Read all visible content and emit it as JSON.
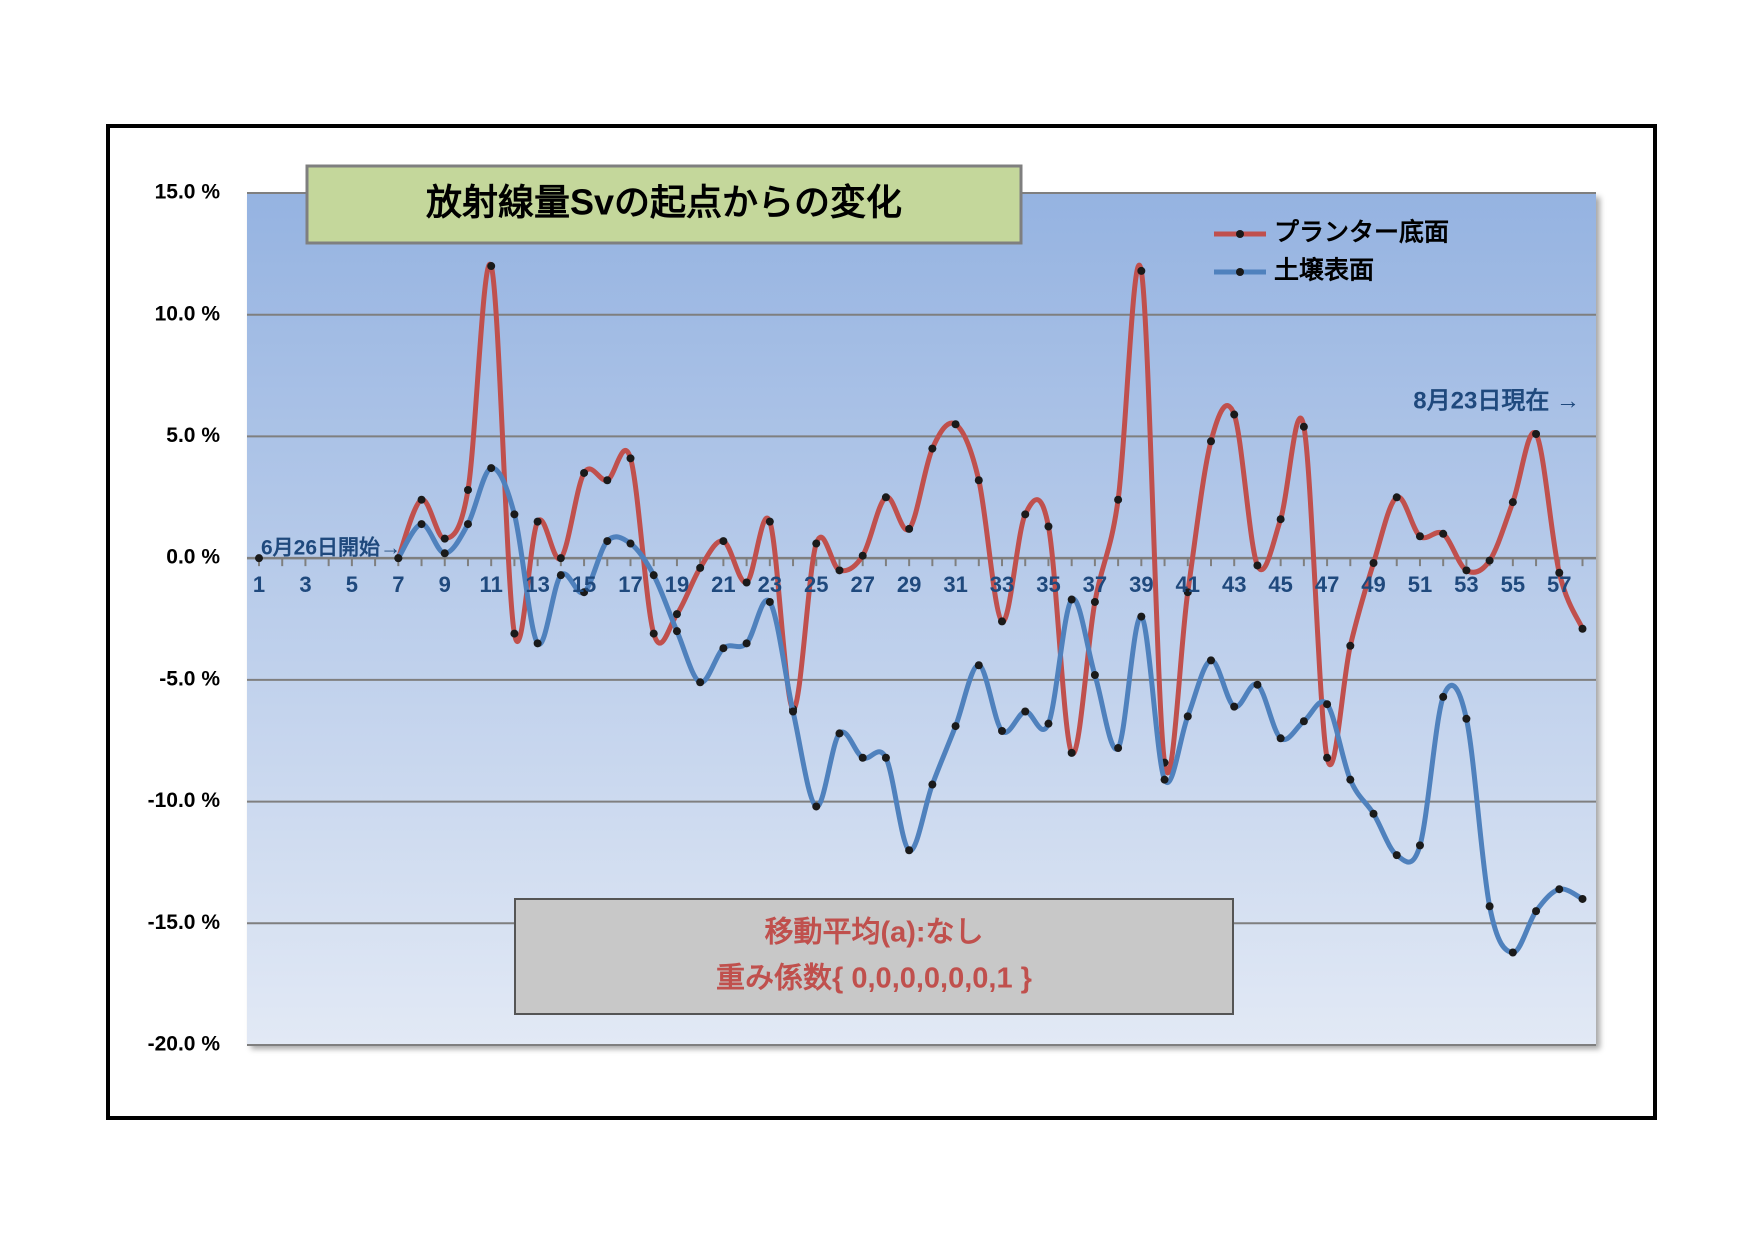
{
  "chart_data": {
    "type": "line",
    "title": "放射線量Svの起点からの変化",
    "categories": [
      1,
      null,
      3,
      null,
      5,
      null,
      7,
      null,
      9,
      null,
      11,
      null,
      13,
      null,
      15,
      null,
      17,
      null,
      19,
      null,
      21,
      null,
      23,
      null,
      25,
      null,
      27,
      null,
      29,
      null,
      31,
      null,
      33,
      null,
      35,
      null,
      37,
      null,
      39,
      null,
      41,
      null,
      43,
      null,
      45,
      null,
      47,
      null,
      49,
      null,
      51,
      null,
      53,
      null,
      55,
      null,
      57,
      null
    ],
    "series": [
      {
        "name": "プランター底面",
        "color": "#c0504d",
        "values": [
          null,
          null,
          null,
          null,
          null,
          null,
          0,
          2.4,
          0.8,
          2.8,
          12.0,
          -3.1,
          1.5,
          0.0,
          3.5,
          3.2,
          4.1,
          -3.1,
          -2.3,
          -0.4,
          0.7,
          -1.0,
          1.5,
          -6.2,
          0.6,
          -0.5,
          0.1,
          2.5,
          1.2,
          4.5,
          5.5,
          3.2,
          -2.6,
          1.8,
          1.3,
          -8.0,
          -1.8,
          2.4,
          11.8,
          -8.4,
          -1.4,
          4.8,
          5.9,
          -0.3,
          1.6,
          5.4,
          -8.2,
          -3.6,
          -0.2,
          2.5,
          0.9,
          1.0,
          -0.5,
          -0.1,
          2.3,
          5.1,
          -0.6,
          -2.9
        ]
      },
      {
        "name": "土壌表面",
        "color": "#4f81bd",
        "values": [
          0,
          null,
          null,
          null,
          null,
          null,
          0,
          1.4,
          0.2,
          1.4,
          3.7,
          1.8,
          -3.5,
          -0.7,
          -1.4,
          0.7,
          0.6,
          -0.7,
          -3.0,
          -5.1,
          -3.7,
          -3.5,
          -1.8,
          -6.3,
          -10.2,
          -7.2,
          -8.2,
          -8.2,
          -12.0,
          -9.3,
          -6.9,
          -4.4,
          -7.1,
          -6.3,
          -6.8,
          -1.7,
          -4.8,
          -7.8,
          -2.4,
          -9.1,
          -6.5,
          -4.2,
          -6.1,
          -5.2,
          -7.4,
          -6.7,
          -6.0,
          -9.1,
          -10.5,
          -12.2,
          -11.8,
          -5.7,
          -6.6,
          -14.3,
          -16.2,
          -14.5,
          -13.6,
          -14.0
        ]
      }
    ],
    "ylim": [
      -20,
      15
    ],
    "yticks": [
      {
        "value": -20,
        "label": "-20.0 %"
      },
      {
        "value": -15,
        "label": "-15.0 %"
      },
      {
        "value": -10,
        "label": "-10.0 %"
      },
      {
        "value": -5,
        "label": "-5.0 %"
      },
      {
        "value": 0,
        "label": "0.0 %"
      },
      {
        "value": 5,
        "label": "5.0 %"
      },
      {
        "value": 10,
        "label": "10.0 %"
      },
      {
        "value": 15,
        "label": "15.0 %"
      }
    ],
    "grid": true,
    "legend": "upper right",
    "annotations": [
      "6月26日開始→",
      "8月23日現在 →"
    ],
    "note": [
      "移動平均(a):なし",
      "重み係数{ 0,0,0,0,0,0,1 }"
    ]
  }
}
